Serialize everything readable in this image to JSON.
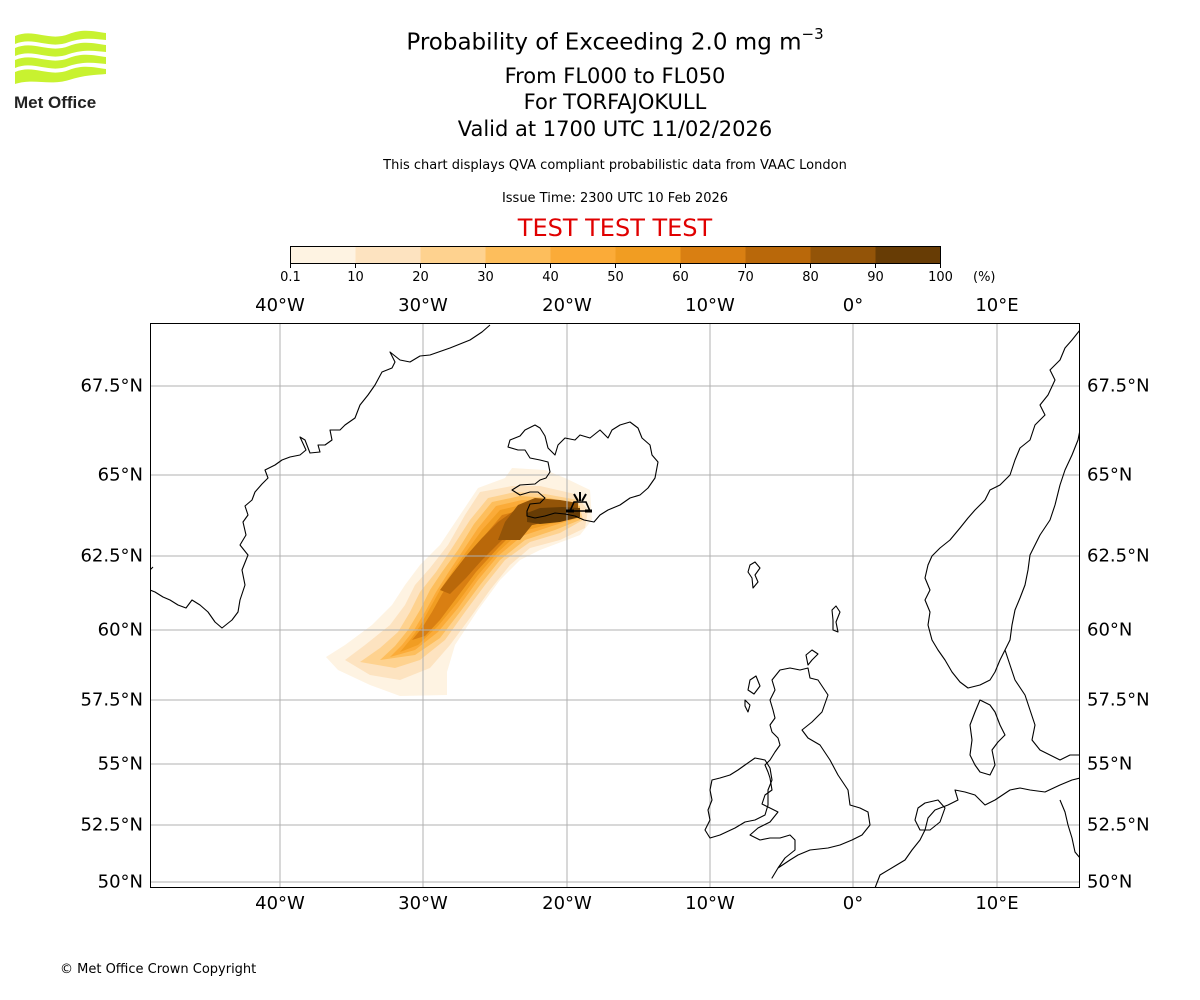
{
  "header": {
    "title_main": "Probability of Exceeding 2.0 mg m",
    "title_exponent": "−3",
    "flight_levels": "From FL000 to FL050",
    "volcano": "For TORFAJOKULL",
    "valid_time": "Valid at 1700 UTC 11/02/2026",
    "description": "This chart displays QVA compliant probabilistic data from VAAC London",
    "issue_time": "Issue Time: 2300 UTC 10 Feb 2026",
    "test_banner": "TEST TEST TEST"
  },
  "logo": {
    "name": "Met Office",
    "color": "#c8f230"
  },
  "colorbar": {
    "ticks": [
      "0.1",
      "10",
      "20",
      "30",
      "40",
      "50",
      "60",
      "70",
      "80",
      "90",
      "100"
    ],
    "unit": "(%)",
    "colors": [
      "#fef3e2",
      "#fde3c0",
      "#fed28f",
      "#fdbe5c",
      "#fbab38",
      "#f19d22",
      "#d97f12",
      "#b9680a",
      "#935408",
      "#673c05"
    ]
  },
  "map": {
    "lon_labels": [
      "40°W",
      "30°W",
      "20°W",
      "10°W",
      "0°",
      "10°E"
    ],
    "lat_labels": [
      "67.5°N",
      "65°N",
      "62.5°N",
      "60°N",
      "57.5°N",
      "55°N",
      "52.5°N",
      "50°N"
    ],
    "volcano_marker": "volcano-symbol",
    "volcano_name": "TORFAJOKULL"
  },
  "chart_data": {
    "type": "heatmap",
    "title": "Probability of Exceeding 2.0 mg m−3, From FL000 to FL050, For TORFAJOKULL",
    "valid": "1700 UTC 11/02/2026",
    "colorbar_range": [
      0.1,
      100
    ],
    "colorbar_unit": "%",
    "plume_description": "Ash plume extending south-west from southern Iceland (~64°N 19°W) to ~58.5°N 33°W; highest probabilities (80-100%) near the source, 50-70% along the central axis, decreasing toward edges.",
    "approx_bands": [
      {
        "range": "0.1-10",
        "extent": "outer envelope, ~58°N 33°W to 65°N 18°W"
      },
      {
        "range": "10-30",
        "extent": "broad envelope along axis"
      },
      {
        "range": "30-60",
        "extent": "central axis from ~59°N 31°W to 64.3°N 19°W"
      },
      {
        "range": "60-80",
        "extent": "core from ~60°N 29°W to 64°N 19°W"
      },
      {
        "range": "80-100",
        "extent": "near source, ~63.5-64.2°N, 20-25°W"
      }
    ],
    "xlim": [
      "45°W",
      "15°E"
    ],
    "ylim": [
      "50°N",
      "69°N"
    ],
    "grid": true
  },
  "footer": {
    "copyright": "© Met Office Crown Copyright"
  }
}
